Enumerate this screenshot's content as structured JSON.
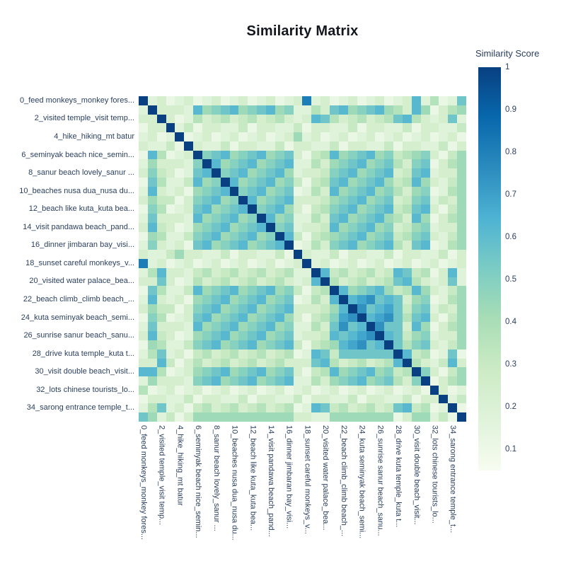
{
  "title": "Similarity Matrix",
  "background": "#ffffff",
  "text_color": "#2a3f5f",
  "colorbar": {
    "title": "Similarity Score",
    "tick_labels": [
      "1",
      "0.9",
      "0.8",
      "0.7",
      "0.6",
      "0.5",
      "0.4",
      "0.3",
      "0.2",
      "0.1"
    ],
    "tick_values": [
      1,
      0.9,
      0.8,
      0.7,
      0.6,
      0.5,
      0.4,
      0.3,
      0.2,
      0.1
    ]
  },
  "chart_data": {
    "type": "heatmap",
    "title": "Similarity Matrix",
    "matrix_size": 36,
    "tick_labels": [
      "0_feed monkeys_monkey fores...",
      "2_visited temple_visit temp...",
      "4_hike_hiking_mt batur",
      "6_seminyak beach nice_semin...",
      "8_sanur beach lovely_sanur ...",
      "10_beaches nusa dua_nusa du...",
      "12_beach like kuta_kuta bea...",
      "14_visit pandawa beach_pand...",
      "16_dinner jimbaran bay_visi...",
      "18_sunset careful monkeys_v...",
      "20_visited water palace_bea...",
      "22_beach climb_climb beach_...",
      "24_kuta seminyak beach_semi...",
      "26_sunrise sanur beach_sanu...",
      "28_drive kuta temple_kuta t...",
      "30_visit double beach_visit...",
      "32_lots chinese tourists_lo...",
      "34_sarong entrance temple_t..."
    ],
    "tick_row_indices": [
      0,
      2,
      4,
      6,
      8,
      10,
      12,
      14,
      16,
      18,
      20,
      22,
      24,
      26,
      28,
      30,
      32,
      34
    ],
    "x_axis_same_as_y": true,
    "value_range": [
      0.05,
      1.0
    ],
    "hex_encoding": "cell (i,j) = char j of row i; char 0-f maps linearly to similarity 0.05-1.00; diagonal=1.0",
    "matrix_rows_hex": [
      "f23123123123123123c23123123123925128",
      "2f3332967896789672253896789653961356",
      "33f312534534534532398534534589532382",
      "133f24133224133224133224133224133224",
      "2312f1231231231236231231231231231231",
      "32241f322413322413322413322413322413",
      "195123f78967896783145967896745673146",
      "2633327f9678967892253678967853781356",
      "37431289f789678962334789678934892336",
      "185224967f96789674145896789645963246",
      "2932316789f7896781253967896753671256",
      "36441378967f967893334678967834782436",
      "175123896789f78963145789678945893146",
      "2833329678967f9672253896789653961356",
      "39431267896789f782334967896734672336",
      "165224789678967f94145678967845783246",
      "2732318967896789f1253789678953891256",
      "32246332241332241f322413322413322413",
      "c23123123123123123f23123123123123123",
      "2593324534534534522f9453453498451392",
      "33831253453453453239f534534589532382",
      "185224967896789674145f96789645963246",
      "2932316789678967812539f9ab8983671256",
      "36441378967896789333469fb89a84782436",
      "1751238967896789631457abf9ab85893146",
      "2833329678967896722538b89fb883961356",
      "394312678967896782334989abf984672336",
      "16522478967896789414569ab89f85783246",
      "2582314534534534512984888888f9451281",
      "33941353453453453338953453459f532493",
      "995123678967896783145967896745f73146",
      "2633327896789678922536789678537f1356",
      "51231231231231231231231231231231f312",
      "133224133224133224133224133224133f24",
      "2582314534534534512984534534894512f1",
      "86241366666666666332266666661366241f"
    ],
    "colorscale_name": "GnBu",
    "colorscale_stops": [
      [
        0,
        "#f7fcf0"
      ],
      [
        0.125,
        "#e0f3db"
      ],
      [
        0.25,
        "#ccebc5"
      ],
      [
        0.375,
        "#a8ddb5"
      ],
      [
        0.5,
        "#7bccc4"
      ],
      [
        0.625,
        "#4eb3d3"
      ],
      [
        0.75,
        "#2b8cbe"
      ],
      [
        0.875,
        "#0868ac"
      ],
      [
        1,
        "#084081"
      ]
    ],
    "legend_position": "right",
    "colorbar_title": "Similarity Score"
  }
}
